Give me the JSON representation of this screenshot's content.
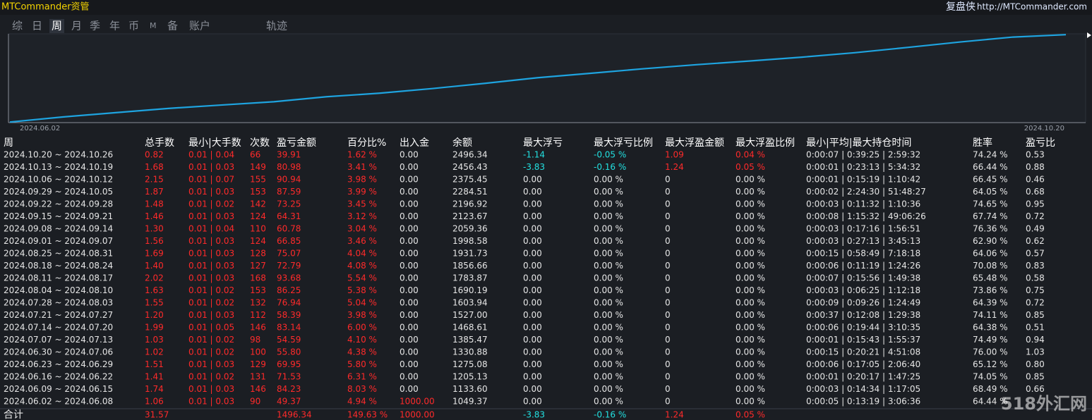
{
  "header": {
    "title": "MTCommander资管",
    "brand": "复盘侠",
    "url": "http://MTCommander.com"
  },
  "tabs": {
    "items": [
      "综",
      "日",
      "周",
      "月",
      "季",
      "年",
      "币",
      "M",
      "备",
      "账户",
      "轨迹"
    ],
    "selected": 2
  },
  "chart": {
    "type": "line",
    "color": "#1ea4e0",
    "categories": [
      "2024.06.02",
      null,
      null,
      null,
      null,
      null,
      null,
      null,
      null,
      null,
      null,
      null,
      null,
      null,
      null,
      null,
      null,
      null,
      null,
      null,
      "2024.10.20"
    ],
    "values": [
      1049.37,
      1133.6,
      1205.13,
      1275.08,
      1330.88,
      1385.47,
      1468.61,
      1527.0,
      1603.94,
      1690.19,
      1783.87,
      1856.66,
      1931.73,
      1998.58,
      2059.36,
      2123.67,
      2196.92,
      2284.51,
      2375.45,
      2456.43,
      2496.34
    ],
    "ylim": [
      1040,
      2510
    ]
  },
  "table": {
    "headers": [
      "周",
      "总手数",
      "最小|大手数",
      "次数",
      "盈亏金额",
      "百分比%",
      "出入金",
      "余额",
      "最大浮亏",
      "最大浮亏比例",
      "最大浮盈金额",
      "最大浮盈比例",
      "最小|平均|最大持仓时间",
      "胜率",
      "盈亏比"
    ],
    "rows": [
      [
        "2024.10.20 ~ 2024.10.26",
        "0.82",
        "0.01 | 0.04",
        "66",
        "39.91",
        "1.62 %",
        "0.00",
        "2496.34",
        "-1.14",
        "-0.05 %",
        "1.09",
        "0.04 %",
        "0:00:07 | 0:39:25 | 2:59:32",
        "74.24 %",
        "0.53"
      ],
      [
        "2024.10.13 ~ 2024.10.19",
        "1.68",
        "0.01 | 0.03",
        "149",
        "80.98",
        "3.41 %",
        "0.00",
        "2456.43",
        "-3.83",
        "-0.16 %",
        "1.24",
        "0.05 %",
        "0:00:01 | 0:23:13 | 5:34:32",
        "66.44 %",
        "0.88"
      ],
      [
        "2024.10.06 ~ 2024.10.12",
        "2.15",
        "0.01 | 0.07",
        "155",
        "90.94",
        "3.98 %",
        "0.00",
        "2375.45",
        "0.00",
        "0.00 %",
        "0",
        "0.00 %",
        "0:00:01 | 0:15:19 | 1:10:42",
        "66.45 %",
        "0.46"
      ],
      [
        "2024.09.29 ~ 2024.10.05",
        "1.87",
        "0.01 | 0.03",
        "153",
        "87.59",
        "3.99 %",
        "0.00",
        "2284.51",
        "0.00",
        "0.00 %",
        "0",
        "0.00 %",
        "0:00:02 | 2:24:30 | 51:48:27",
        "64.05 %",
        "0.68"
      ],
      [
        "2024.09.22 ~ 2024.09.28",
        "1.48",
        "0.01 | 0.02",
        "142",
        "73.25",
        "3.45 %",
        "0.00",
        "2196.92",
        "0.00",
        "0.00 %",
        "0",
        "0.00 %",
        "0:00:03 | 0:11:32 | 1:10:36",
        "74.65 %",
        "0.95"
      ],
      [
        "2024.09.15 ~ 2024.09.21",
        "1.46",
        "0.01 | 0.03",
        "124",
        "64.31",
        "3.12 %",
        "0.00",
        "2123.67",
        "0.00",
        "0.00 %",
        "0",
        "0.00 %",
        "0:00:08 | 1:15:32 | 49:06:26",
        "67.74 %",
        "0.72"
      ],
      [
        "2024.09.08 ~ 2024.09.14",
        "1.30",
        "0.01 | 0.04",
        "110",
        "60.78",
        "3.04 %",
        "0.00",
        "2059.36",
        "0.00",
        "0.00 %",
        "0",
        "0.00 %",
        "0:00:03 | 0:17:16 | 1:56:51",
        "76.36 %",
        "0.49"
      ],
      [
        "2024.09.01 ~ 2024.09.07",
        "1.56",
        "0.01 | 0.03",
        "124",
        "66.85",
        "3.46 %",
        "0.00",
        "1998.58",
        "0.00",
        "0.00 %",
        "0",
        "0.00 %",
        "0:00:03 | 0:27:13 | 3:45:13",
        "62.90 %",
        "0.62"
      ],
      [
        "2024.08.25 ~ 2024.08.31",
        "1.69",
        "0.01 | 0.03",
        "128",
        "75.07",
        "4.04 %",
        "0.00",
        "1931.73",
        "0.00",
        "0.00 %",
        "0",
        "0.00 %",
        "0:00:15 | 0:58:49 | 7:18:18",
        "64.06 %",
        "0.57"
      ],
      [
        "2024.08.18 ~ 2024.08.24",
        "1.40",
        "0.01 | 0.03",
        "127",
        "72.79",
        "4.08 %",
        "0.00",
        "1856.66",
        "0.00",
        "0.00 %",
        "0",
        "0.00 %",
        "0:00:06 | 0:11:19 | 1:24:26",
        "70.08 %",
        "0.83"
      ],
      [
        "2024.08.11 ~ 2024.08.17",
        "2.02",
        "0.01 | 0.03",
        "168",
        "93.68",
        "5.54 %",
        "0.00",
        "1783.87",
        "0.00",
        "0.00 %",
        "0",
        "0.00 %",
        "0:00:07 | 0:15:56 | 1:49:38",
        "65.48 %",
        "0.58"
      ],
      [
        "2024.08.04 ~ 2024.08.10",
        "1.63",
        "0.01 | 0.02",
        "153",
        "86.25",
        "5.38 %",
        "0.00",
        "1690.19",
        "0.00",
        "0.00 %",
        "0",
        "0.00 %",
        "0:00:03 | 0:06:25 | 1:12:18",
        "73.86 %",
        "0.75"
      ],
      [
        "2024.07.28 ~ 2024.08.03",
        "1.55",
        "0.01 | 0.02",
        "132",
        "76.94",
        "5.04 %",
        "0.00",
        "1603.94",
        "0.00",
        "0.00 %",
        "0",
        "0.00 %",
        "0:00:09 | 0:09:26 | 1:24:49",
        "64.39 %",
        "0.72"
      ],
      [
        "2024.07.21 ~ 2024.07.27",
        "1.20",
        "0.01 | 0.03",
        "112",
        "58.39",
        "3.98 %",
        "0.00",
        "1527.00",
        "0.00",
        "0.00 %",
        "0",
        "0.00 %",
        "0:00:37 | 0:12:08 | 1:29:38",
        "74.11 %",
        "0.85"
      ],
      [
        "2024.07.14 ~ 2024.07.20",
        "1.99",
        "0.01 | 0.05",
        "146",
        "83.14",
        "6.00 %",
        "0.00",
        "1468.61",
        "0.00",
        "0.00 %",
        "0",
        "0.00 %",
        "0:00:06 | 0:19:44 | 3:10:35",
        "64.38 %",
        "0.51"
      ],
      [
        "2024.07.07 ~ 2024.07.13",
        "1.03",
        "0.01 | 0.02",
        "98",
        "54.59",
        "4.10 %",
        "0.00",
        "1385.47",
        "0.00",
        "0.00 %",
        "0",
        "0.00 %",
        "0:00:01 | 0:15:43 | 1:55:37",
        "74.49 %",
        "0.94"
      ],
      [
        "2024.06.30 ~ 2024.07.06",
        "1.02",
        "0.01 | 0.02",
        "100",
        "55.80",
        "4.38 %",
        "0.00",
        "1330.88",
        "0.00",
        "0.00 %",
        "0",
        "0.00 %",
        "0:00:15 | 0:20:21 | 4:51:08",
        "76.00 %",
        "1.03"
      ],
      [
        "2024.06.23 ~ 2024.06.29",
        "1.51",
        "0.01 | 0.03",
        "129",
        "69.95",
        "5.80 %",
        "0.00",
        "1275.08",
        "0.00",
        "0.00 %",
        "0",
        "0.00 %",
        "0:00:06 | 0:17:05 | 2:06:40",
        "65.12 %",
        "0.80"
      ],
      [
        "2024.06.16 ~ 2024.06.22",
        "1.41",
        "0.01 | 0.02",
        "131",
        "71.53",
        "6.31 %",
        "0.00",
        "1205.13",
        "0.00",
        "0.00 %",
        "0",
        "0.00 %",
        "0:00:01 | 0:20:17 | 1:47:25",
        "74.05 %",
        "0.85"
      ],
      [
        "2024.06.09 ~ 2024.06.15",
        "1.74",
        "0.01 | 0.03",
        "146",
        "84.23",
        "8.03 %",
        "0.00",
        "1133.60",
        "0.00",
        "0.00 %",
        "0",
        "0.00 %",
        "0:00:03 | 0:14:34 | 1:17:05",
        "68.49 %",
        "0.66"
      ],
      [
        "2024.06.02 ~ 2024.06.08",
        "1.06",
        "0.01 | 0.03",
        "90",
        "49.37",
        "4.94 %",
        "1000.00",
        "1049.37",
        "0.00",
        "0.00 %",
        "0",
        "0.00 %",
        "0:00:05 | 0:13:19 | 3:06:36",
        "64.44 %",
        null
      ]
    ],
    "total": [
      "合计",
      "31.57",
      null,
      null,
      "1496.34",
      "149.63 %",
      "1000.00",
      null,
      "-3.83",
      "-0.16 %",
      "1.24",
      "0.05 %",
      null,
      null,
      null
    ]
  },
  "watermark": "518外汇网"
}
